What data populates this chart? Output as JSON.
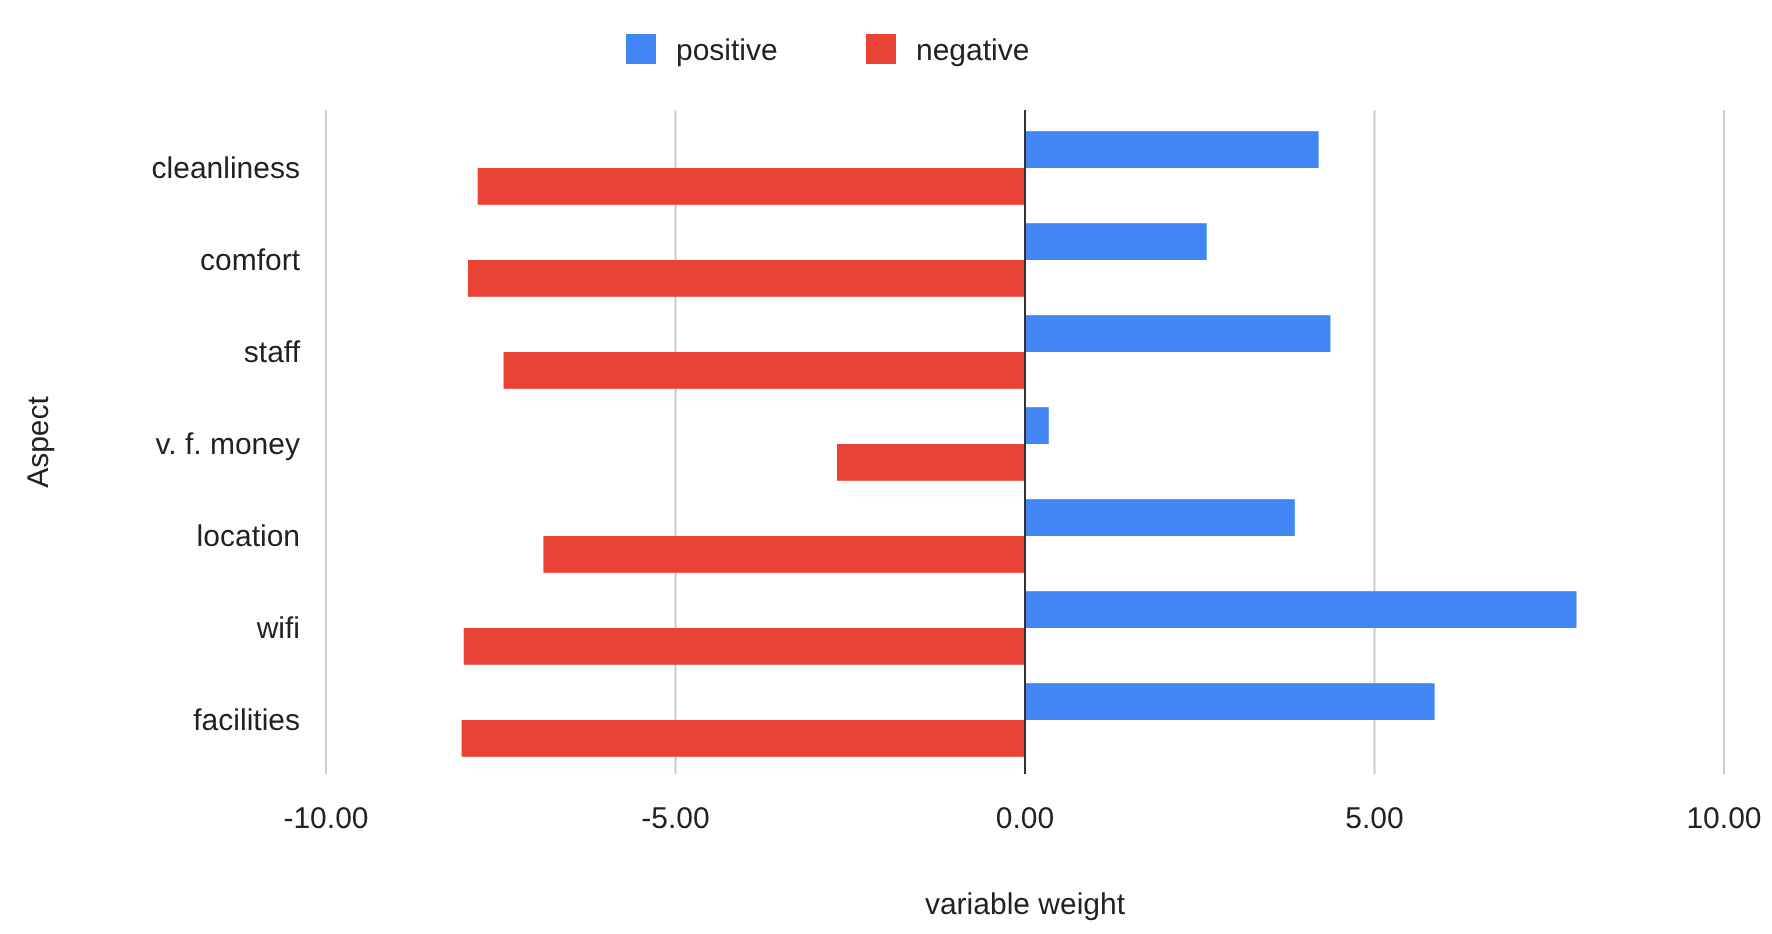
{
  "chart_data": {
    "type": "bar",
    "orientation": "horizontal",
    "xlabel": "variable weight",
    "ylabel": "Aspect",
    "categories": [
      "cleanliness",
      "comfort",
      "staff",
      "v. f. money",
      "location",
      "wifi",
      "facilities"
    ],
    "series": [
      {
        "name": "positive",
        "color": "#4285f4",
        "values": [
          4.2,
          2.6,
          4.37,
          0.34,
          3.86,
          7.89,
          5.86
        ]
      },
      {
        "name": "negative",
        "color": "#ea4335",
        "values": [
          -7.83,
          -7.97,
          -7.46,
          -2.69,
          -6.89,
          -8.03,
          -8.06
        ]
      }
    ],
    "xlim": [
      -10,
      10
    ],
    "xticks": [
      {
        "value": -10,
        "label": "-10.00"
      },
      {
        "value": -5,
        "label": "-5.00"
      },
      {
        "value": 0,
        "label": "0.00"
      },
      {
        "value": 5,
        "label": "5.00"
      },
      {
        "value": 10,
        "label": "10.00"
      }
    ],
    "grid": "x",
    "legend": "top"
  }
}
